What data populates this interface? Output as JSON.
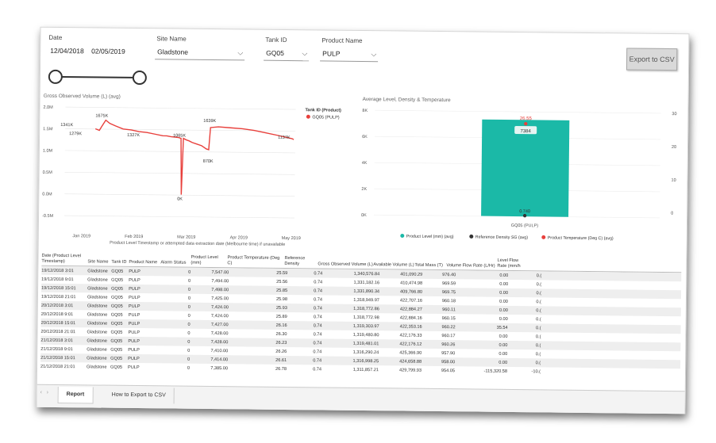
{
  "filters": {
    "date": {
      "label": "Date",
      "start": "12/04/2018",
      "end": "02/05/2019"
    },
    "site_name": {
      "label": "Site Name",
      "value": "Gladstone"
    },
    "tank_id": {
      "label": "Tank ID",
      "value": "GQ05"
    },
    "product_name": {
      "label": "Product Name",
      "value": "PULP"
    }
  },
  "export_button": "Export to CSV",
  "chart_data": [
    {
      "type": "line",
      "title": "Gross Observed Volume (L) (avg)",
      "xlabel": "Product Level Timestamp or attempted data extraction date (Melbourne time) if unavailable",
      "x_ticks": [
        "Jan 2019",
        "Feb 2019",
        "Mar 2019",
        "Apr 2019",
        "May 2019"
      ],
      "y_ticks": [
        "2.0M",
        "1.5M",
        "1.0M",
        "0.5M",
        "0.0M",
        "-0.5M"
      ],
      "ylim": [
        -0.5,
        2.0
      ],
      "legend_title": "Tank ID (Product)",
      "series": [
        {
          "name": "GQ05 (PULP)",
          "color": "#e8403c"
        }
      ],
      "data_labels": [
        "1675K",
        "1341K",
        "1279K",
        "1327K",
        "1065K",
        "1639K",
        "870K",
        "1137K",
        "0K"
      ]
    },
    {
      "type": "bar",
      "title": "Average Level, Density & Temperature",
      "categories": [
        "GQ05 (PULP)"
      ],
      "left_ticks": [
        "8K",
        "6K",
        "4K",
        "2K",
        "0K"
      ],
      "right_ticks": [
        "30",
        "20",
        "10",
        "0"
      ],
      "values": [
        7384
      ],
      "temperature": 26.55,
      "density": 0.74,
      "labels": {
        "level": "7384",
        "temperature": "26.55",
        "density": "0.740"
      },
      "legend": [
        {
          "name": "Product Level (mm) (avg)",
          "color": "#1bb9a7"
        },
        {
          "name": "Reference Density SG (avg)",
          "color": "#333333"
        },
        {
          "name": "Product Temperature (Deg C) (avg)",
          "color": "#e8403c"
        }
      ]
    }
  ],
  "table": {
    "headers": [
      "Date (Product Level Timestamp)",
      "Site Name",
      "Tank ID",
      "Product Name",
      "Alarm Status",
      "Product Level (mm)",
      "Product Temperature (Deg C)",
      "Reference Density",
      "Gross Observed Volume (L)",
      "Available Volume (L)",
      "Total Mass (T)",
      "Volume Flow Rate (L/Hr)",
      "Level Flow Rate (mm/h"
    ],
    "rows": [
      [
        "19/12/2018 3:01",
        "Gladstone",
        "GQ05",
        "PULP",
        "0",
        "7,547.00",
        "25.59",
        "0.74",
        "1,340,576.84",
        "401,090.29",
        "976.40",
        "0.00",
        "0.("
      ],
      [
        "19/12/2018 9:01",
        "Gladstone",
        "GQ05",
        "PULP",
        "0",
        "7,494.00",
        "25.56",
        "0.74",
        "1,331,182.16",
        "410,474.98",
        "969.59",
        "0.00",
        "0.("
      ],
      [
        "19/12/2018 15:01",
        "Gladstone",
        "GQ05",
        "PULP",
        "0",
        "7,498.00",
        "25.85",
        "0.74",
        "1,331,890.34",
        "409,766.80",
        "969.75",
        "0.00",
        "0.("
      ],
      [
        "19/12/2018 21:01",
        "Gladstone",
        "GQ05",
        "PULP",
        "0",
        "7,425.00",
        "25.98",
        "0.74",
        "1,318,949.97",
        "422,707.16",
        "960.18",
        "0.00",
        "0.("
      ],
      [
        "20/12/2018 3:01",
        "Gladstone",
        "GQ05",
        "PULP",
        "0",
        "7,424.00",
        "25.93",
        "0.74",
        "1,318,772.86",
        "422,884.27",
        "960.11",
        "0.00",
        "0.("
      ],
      [
        "20/12/2018 9:01",
        "Gladstone",
        "GQ05",
        "PULP",
        "0",
        "7,424.00",
        "25.89",
        "0.74",
        "1,318,772.98",
        "422,884.16",
        "960.15",
        "0.00",
        "0.("
      ],
      [
        "20/12/2018 15:01",
        "Gladstone",
        "GQ05",
        "PULP",
        "0",
        "7,427.00",
        "26.16",
        "0.74",
        "1,319,303.97",
        "422,353.16",
        "960.22",
        "35.54",
        "0.("
      ],
      [
        "20/12/2018 21:01",
        "Gladstone",
        "GQ05",
        "PULP",
        "0",
        "7,428.00",
        "26.30",
        "0.74",
        "1,319,480.80",
        "422,176.33",
        "960.17",
        "0.00",
        "0.("
      ],
      [
        "21/12/2018 3:01",
        "Gladstone",
        "GQ05",
        "PULP",
        "0",
        "7,428.00",
        "26.23",
        "0.74",
        "1,319,481.01",
        "422,176.12",
        "960.26",
        "0.00",
        "0.("
      ],
      [
        "21/12/2018 9:01",
        "Gladstone",
        "GQ05",
        "PULP",
        "0",
        "7,410.00",
        "26.26",
        "0.74",
        "1,316,290.24",
        "425,366.90",
        "957.90",
        "0.00",
        "0.("
      ],
      [
        "21/12/2018 15:01",
        "Gladstone",
        "GQ05",
        "PULP",
        "0",
        "7,414.00",
        "26.61",
        "0.74",
        "1,316,998.25",
        "424,658.88",
        "958.00",
        "0.00",
        "0.("
      ],
      [
        "21/12/2018 21:01",
        "Gladstone",
        "GQ05",
        "PULP",
        "0",
        "7,385.00",
        "26.78",
        "0.74",
        "1,311,857.21",
        "429,799.93",
        "954.05",
        "-115,320.58",
        "-10.("
      ]
    ]
  },
  "tabs": [
    "Report",
    "How to Export to CSV"
  ]
}
